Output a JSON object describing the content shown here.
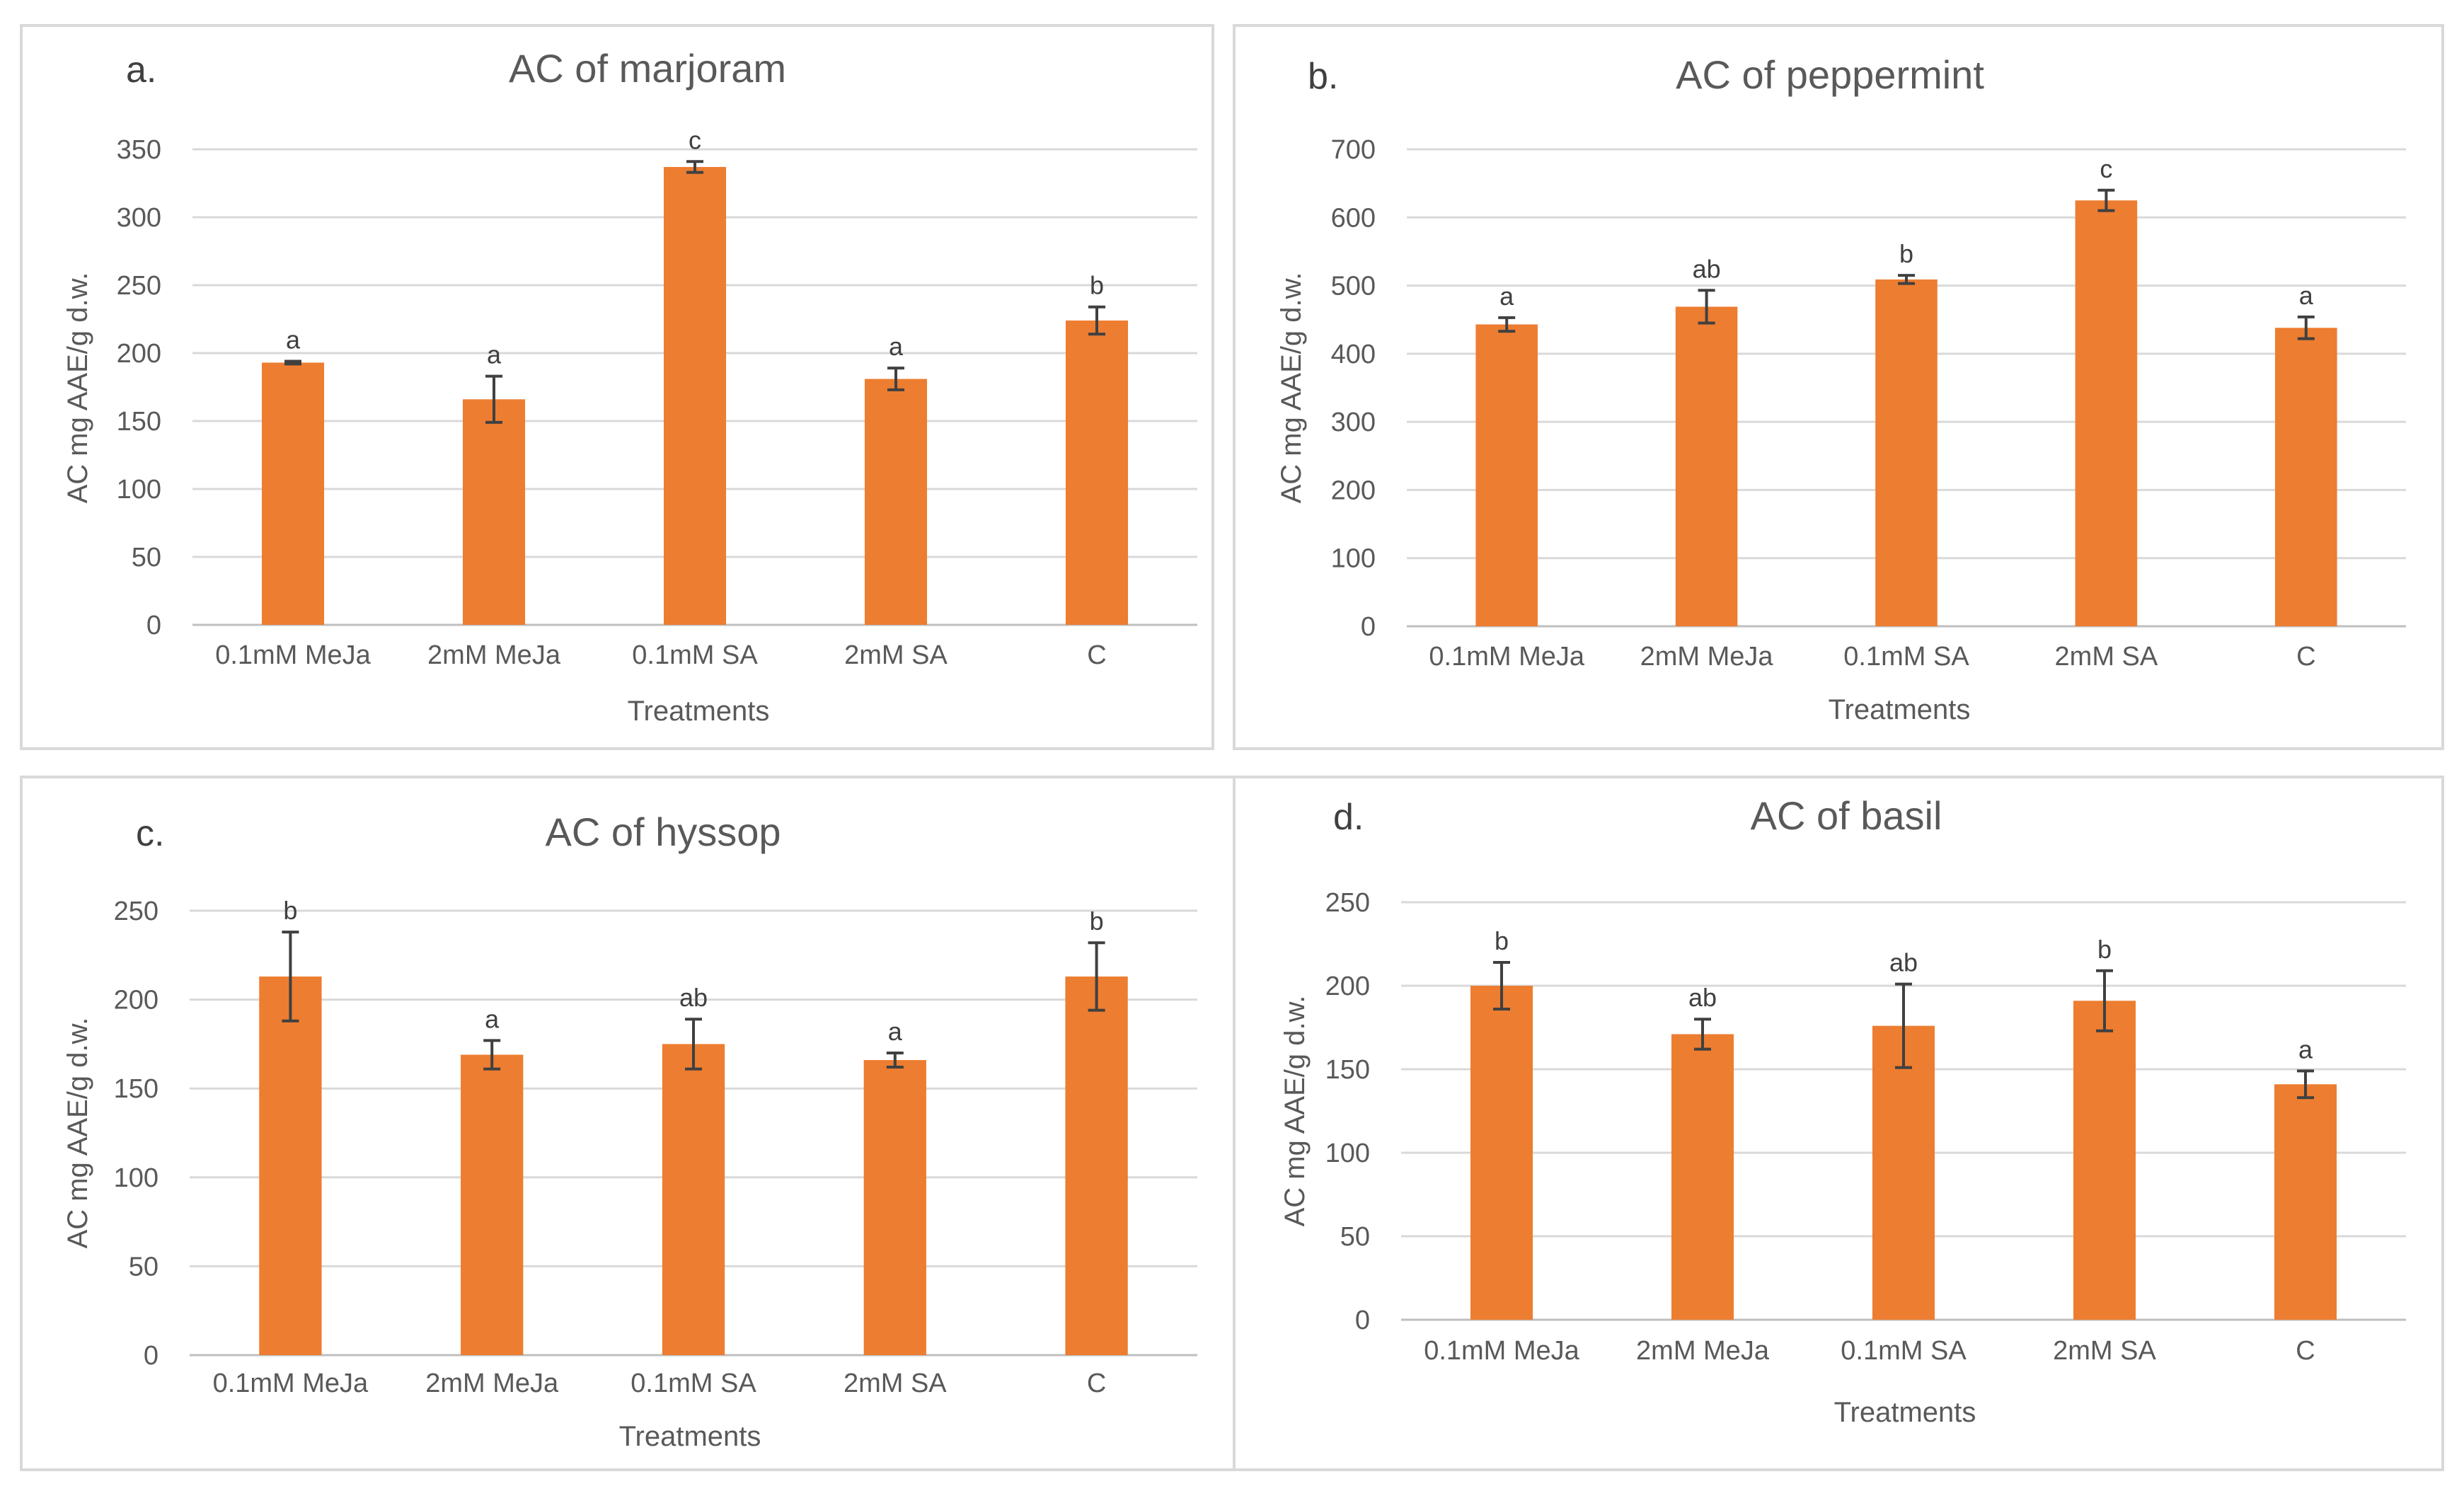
{
  "figure": {
    "x_axis_title": "Treatments",
    "y_axis_title": "AC mg AAE/g d.w."
  },
  "colors": {
    "bar": "#ED7D31",
    "grid": "#d9d9d9",
    "text": "#595959",
    "error_bar": "#404040"
  },
  "chart_data": [
    {
      "type": "bar",
      "panel": "a.",
      "title": "AC of marjoram",
      "xlabel": "Treatments",
      "ylabel": "AC mg AAE/g d.w.",
      "categories": [
        "0.1mM MeJa",
        "2mM MeJa",
        "0.1mM SA",
        "2mM SA",
        "C"
      ],
      "values": [
        193,
        166,
        337,
        181,
        224
      ],
      "errors": [
        1,
        17,
        4,
        8,
        10
      ],
      "significance": [
        "a",
        "a",
        "c",
        "a",
        "b"
      ],
      "ylim": [
        0,
        350
      ],
      "yticks": [
        0,
        50,
        100,
        150,
        200,
        250,
        300,
        350
      ],
      "grid": true
    },
    {
      "type": "bar",
      "panel": "b.",
      "title": "AC of peppermint",
      "xlabel": "Treatments",
      "ylabel": "AC mg AAE/g d.w.",
      "categories": [
        "0.1mM MeJa",
        "2mM MeJa",
        "0.1mM SA",
        "2mM SA",
        "C"
      ],
      "values": [
        443,
        469,
        509,
        625,
        438
      ],
      "errors": [
        10,
        24,
        6,
        15,
        16
      ],
      "significance": [
        "a",
        "ab",
        "b",
        "c",
        "a"
      ],
      "ylim": [
        0,
        700
      ],
      "yticks": [
        0,
        100,
        200,
        300,
        400,
        500,
        600,
        700
      ],
      "grid": true
    },
    {
      "type": "bar",
      "panel": "c.",
      "title": "AC of hyssop",
      "xlabel": "Treatments",
      "ylabel": "AC mg AAE/g d.w.",
      "categories": [
        "0.1mM MeJa",
        "2mM MeJa",
        "0.1mM SA",
        "2mM SA",
        "C"
      ],
      "values": [
        213,
        169,
        175,
        166,
        213
      ],
      "errors": [
        25,
        8,
        14,
        4,
        19
      ],
      "significance": [
        "b",
        "a",
        "ab",
        "a",
        "b"
      ],
      "ylim": [
        0,
        250
      ],
      "yticks": [
        0,
        50,
        100,
        150,
        200,
        250
      ],
      "grid": true
    },
    {
      "type": "bar",
      "panel": "d.",
      "title": "AC of basil",
      "xlabel": "Treatments",
      "ylabel": "AC mg AAE/g d.w.",
      "categories": [
        "0.1mM MeJa",
        "2mM MeJa",
        "0.1mM SA",
        "2mM SA",
        "C"
      ],
      "values": [
        200,
        171,
        176,
        191,
        141
      ],
      "errors": [
        14,
        9,
        25,
        18,
        8
      ],
      "significance": [
        "b",
        "ab",
        "ab",
        "b",
        "a"
      ],
      "ylim": [
        0,
        250
      ],
      "yticks": [
        0,
        50,
        100,
        150,
        200,
        250
      ],
      "grid": true
    }
  ]
}
